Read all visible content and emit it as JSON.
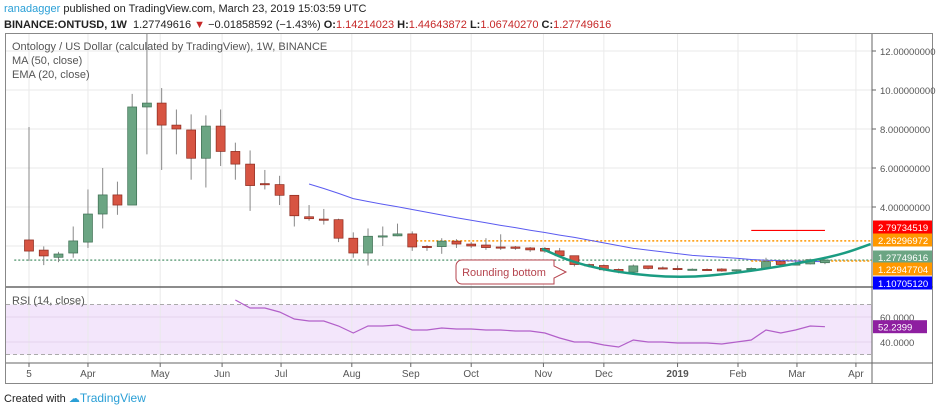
{
  "header": {
    "author": "ranadagger",
    "published": "published on TradingView.com, March 23, 2019 15:03:59 UTC",
    "symbol": "BINANCE:ONTUSD, 1W",
    "last": "1.27749616",
    "change": "−0.01858592 (−1.43%)",
    "o_label": "O:",
    "o": "1.14214023",
    "h_label": "H:",
    "h": "1.44643872",
    "l_label": "L:",
    "l": "1.06740270",
    "c_label": "C:",
    "c": "1.27749616"
  },
  "footer": {
    "created_with": "Created with",
    "brand": "TradingView"
  },
  "colors": {
    "up": "#6ba583",
    "down": "#d75442",
    "ma": "#5b5bf0",
    "curve": "#1a9c82",
    "rsi": "#b25fc9",
    "rsi_bg": "#f3e6fb",
    "orange": "#ff9800",
    "red_line": "#ff0000"
  },
  "chart_data": {
    "type": "candlestick",
    "title": "Ontology / US Dollar (calculated by TradingView), 1W, BINANCE",
    "start_week": "2018-03-05",
    "interval": "1W",
    "indicators": [
      "MA (50, close)",
      "EMA (20, close)"
    ],
    "candles": [
      [
        2.31,
        8.1,
        1.23,
        1.74
      ],
      [
        1.79,
        1.98,
        1.02,
        1.49
      ],
      [
        1.42,
        1.7,
        1.17,
        1.59
      ],
      [
        1.64,
        3.0,
        1.4,
        2.26
      ],
      [
        2.2,
        4.9,
        1.9,
        3.64
      ],
      [
        3.64,
        6.0,
        2.9,
        4.62
      ],
      [
        4.62,
        5.3,
        3.6,
        4.1
      ],
      [
        4.1,
        9.8,
        4.1,
        9.13
      ],
      [
        9.13,
        13.0,
        6.7,
        9.33
      ],
      [
        9.33,
        10.1,
        5.9,
        8.2
      ],
      [
        8.2,
        9.0,
        6.7,
        8.0
      ],
      [
        7.95,
        8.75,
        5.4,
        6.5
      ],
      [
        6.5,
        8.7,
        5.0,
        8.15
      ],
      [
        8.15,
        9.0,
        6.1,
        6.85
      ],
      [
        6.85,
        7.3,
        5.4,
        6.2
      ],
      [
        6.2,
        6.9,
        3.8,
        5.1
      ],
      [
        5.2,
        5.9,
        4.9,
        5.15
      ],
      [
        5.15,
        5.6,
        4.1,
        4.6
      ],
      [
        4.6,
        4.6,
        3.0,
        3.55
      ],
      [
        3.5,
        4.1,
        3.3,
        3.4
      ],
      [
        3.38,
        3.9,
        3.1,
        3.35
      ],
      [
        3.35,
        3.4,
        2.2,
        2.4
      ],
      [
        2.4,
        2.7,
        1.4,
        1.64
      ],
      [
        1.64,
        2.9,
        1.0,
        2.5
      ],
      [
        2.5,
        3.0,
        2.0,
        2.52
      ],
      [
        2.52,
        3.15,
        2.5,
        2.62
      ],
      [
        2.62,
        2.75,
        1.75,
        1.95
      ],
      [
        1.98,
        2.05,
        1.75,
        1.97
      ],
      [
        1.97,
        2.4,
        1.6,
        2.25
      ],
      [
        2.25,
        2.35,
        1.9,
        2.1
      ],
      [
        2.1,
        2.2,
        1.9,
        2.0
      ],
      [
        2.05,
        2.4,
        1.8,
        1.92
      ],
      [
        1.95,
        2.6,
        1.8,
        1.93
      ],
      [
        1.95,
        2.0,
        1.8,
        1.88
      ],
      [
        1.9,
        1.95,
        1.7,
        1.8
      ],
      [
        1.88,
        1.95,
        1.65,
        1.74
      ],
      [
        1.75,
        1.9,
        1.45,
        1.5
      ],
      [
        1.5,
        1.5,
        0.95,
        1.05
      ],
      [
        1.05,
        1.1,
        0.9,
        0.98
      ],
      [
        1.0,
        1.05,
        0.7,
        0.78
      ],
      [
        0.8,
        0.85,
        0.6,
        0.68
      ],
      [
        0.66,
        1.05,
        0.6,
        0.98
      ],
      [
        0.98,
        1.0,
        0.8,
        0.85
      ],
      [
        0.88,
        0.95,
        0.8,
        0.87
      ],
      [
        0.85,
        1.0,
        0.75,
        0.8
      ],
      [
        0.8,
        0.85,
        0.75,
        0.81
      ],
      [
        0.8,
        0.85,
        0.75,
        0.79
      ],
      [
        0.82,
        0.86,
        0.68,
        0.72
      ],
      [
        0.74,
        0.8,
        0.7,
        0.78
      ],
      [
        0.8,
        0.9,
        0.75,
        0.85
      ],
      [
        0.85,
        1.4,
        0.8,
        1.2
      ],
      [
        1.2,
        1.25,
        1.0,
        1.05
      ],
      [
        1.05,
        1.2,
        1.0,
        1.08
      ],
      [
        1.08,
        1.35,
        1.05,
        1.3
      ],
      [
        1.142,
        1.446,
        1.067,
        1.277
      ]
    ],
    "ma50_start_index": 19,
    "ma50": [
      5.18,
      4.95,
      4.7,
      4.43,
      4.28,
      4.14,
      4.01,
      3.87,
      3.73,
      3.59,
      3.45,
      3.32,
      3.19,
      3.06,
      2.94,
      2.81,
      2.69,
      2.56,
      2.44,
      2.3,
      2.16,
      2.02,
      1.88,
      1.79,
      1.7,
      1.61,
      1.52,
      1.47,
      1.42,
      1.37,
      1.31,
      1.27,
      1.25,
      1.23,
      1.21,
      1.19
    ],
    "rounding_curve": [
      [
        34.8,
        1.86
      ],
      [
        37.0,
        1.13
      ],
      [
        40.1,
        0.62
      ],
      [
        44.2,
        0.36
      ],
      [
        48.2,
        0.62
      ],
      [
        52.3,
        1.13
      ],
      [
        55.0,
        1.54
      ],
      [
        57.1,
        2.1
      ]
    ],
    "annotation": "Rounding bottom",
    "levels": [
      {
        "value": 2.79734519,
        "label": "2.79734519",
        "color": "#ff0000",
        "style": "solid",
        "from": 49,
        "to": 54
      },
      {
        "value": 2.26296972,
        "label": "2.26296972",
        "color": "#ff9800",
        "style": "dotted",
        "from": 26,
        "to": 57
      },
      {
        "value": 1.27749616,
        "label": "1.27749616",
        "color": "#6ba583",
        "style": "dotted",
        "from": -1,
        "to": 57
      },
      {
        "value": 1.22947704,
        "label": "1.22947704",
        "color": "#ff9800",
        "style": "dotted",
        "from": 49,
        "to": 57
      },
      {
        "value": 1.1070512,
        "label": "1.10705120",
        "color": "#0000ff",
        "style": "none"
      }
    ],
    "y_ticks": [
      "12.00000000",
      "10.00000000",
      "8.00000000",
      "6.00000000",
      "4.00000000"
    ],
    "y_tick_values": [
      12,
      10,
      8,
      6,
      4
    ],
    "rsi": {
      "label": "RSI (14, close)",
      "start_index": 14,
      "values": [
        73.6,
        67.2,
        67.2,
        64,
        58.4,
        56.8,
        56.8,
        52.8,
        47.2,
        52.8,
        52.8,
        53.6,
        49.6,
        49.6,
        51.2,
        50.4,
        50.4,
        49.6,
        49.6,
        48.8,
        48.8,
        47.2,
        43.2,
        40,
        40,
        37.6,
        36,
        41.6,
        40,
        40,
        39.2,
        39.2,
        39.2,
        38.4,
        40,
        41.6,
        49.6,
        47.2,
        49.6,
        52.8,
        52.24
      ],
      "last": "52.2399",
      "ticks": [
        "60.0000",
        "40.0000"
      ],
      "tick_values": [
        60,
        40
      ],
      "band": [
        30,
        70
      ]
    },
    "x_ticks": [
      "5",
      "Apr",
      "May",
      "Jun",
      "Jul",
      "Aug",
      "Sep",
      "Oct",
      "Nov",
      "Dec",
      "2019",
      "Feb",
      "Mar",
      "Apr"
    ],
    "x_tick_weeks": [
      0,
      4,
      8.9,
      13.1,
      17.1,
      21.9,
      25.9,
      30,
      34.9,
      39,
      44,
      48.1,
      52.1,
      56.1
    ]
  }
}
